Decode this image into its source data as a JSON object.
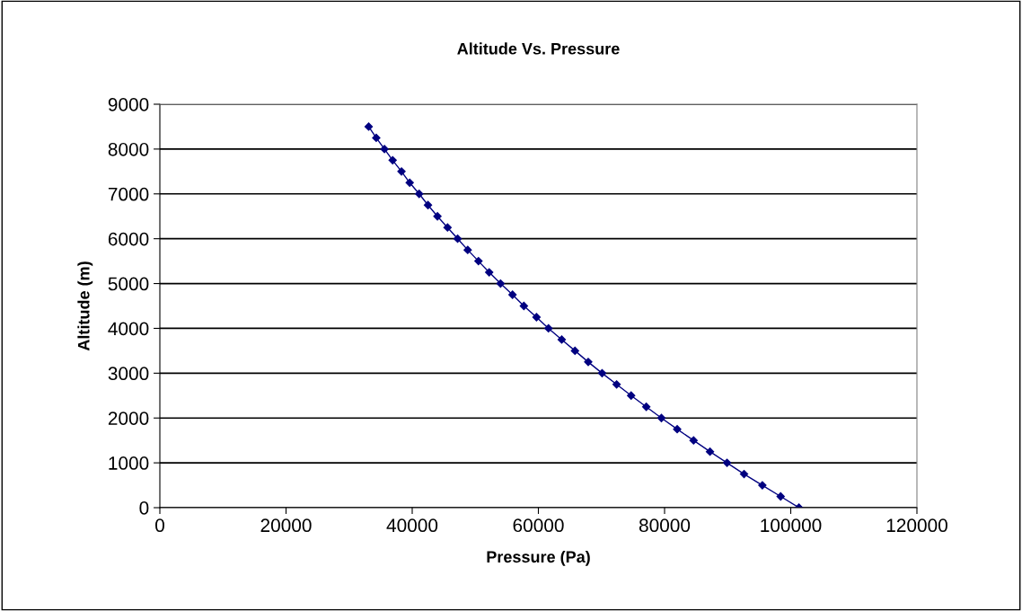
{
  "chart_data": {
    "type": "line",
    "title": "Altitude Vs. Pressure",
    "xlabel": "Pressure (Pa)",
    "ylabel": "Altitude (m)",
    "x": [
      101300,
      98400,
      95500,
      92600,
      89900,
      87200,
      84600,
      82000,
      79500,
      77100,
      74700,
      72400,
      70100,
      67900,
      65800,
      63700,
      61600,
      59700,
      57700,
      55900,
      54000,
      52200,
      50500,
      48800,
      47200,
      45600,
      44000,
      42500,
      41100,
      39600,
      38300,
      36900,
      35600,
      34300,
      33100
    ],
    "series": [
      {
        "color": "#000080",
        "values": [
          0,
          250,
          500,
          750,
          1000,
          1250,
          1500,
          1750,
          2000,
          2250,
          2500,
          2750,
          3000,
          3250,
          3500,
          3750,
          4000,
          4250,
          4500,
          4750,
          5000,
          5250,
          5500,
          5750,
          6000,
          6250,
          6500,
          6750,
          7000,
          7250,
          7500,
          7750,
          8000,
          8250,
          8500
        ]
      }
    ],
    "xlim": [
      0,
      120000
    ],
    "xticks": [
      0,
      20000,
      40000,
      60000,
      80000,
      100000,
      120000
    ],
    "ylim": [
      0,
      9000
    ],
    "yticks": [
      0,
      1000,
      2000,
      3000,
      4000,
      5000,
      6000,
      7000,
      8000,
      9000
    ],
    "grid": "y",
    "marker": "diamond",
    "line_style": "solid",
    "legend": false
  }
}
